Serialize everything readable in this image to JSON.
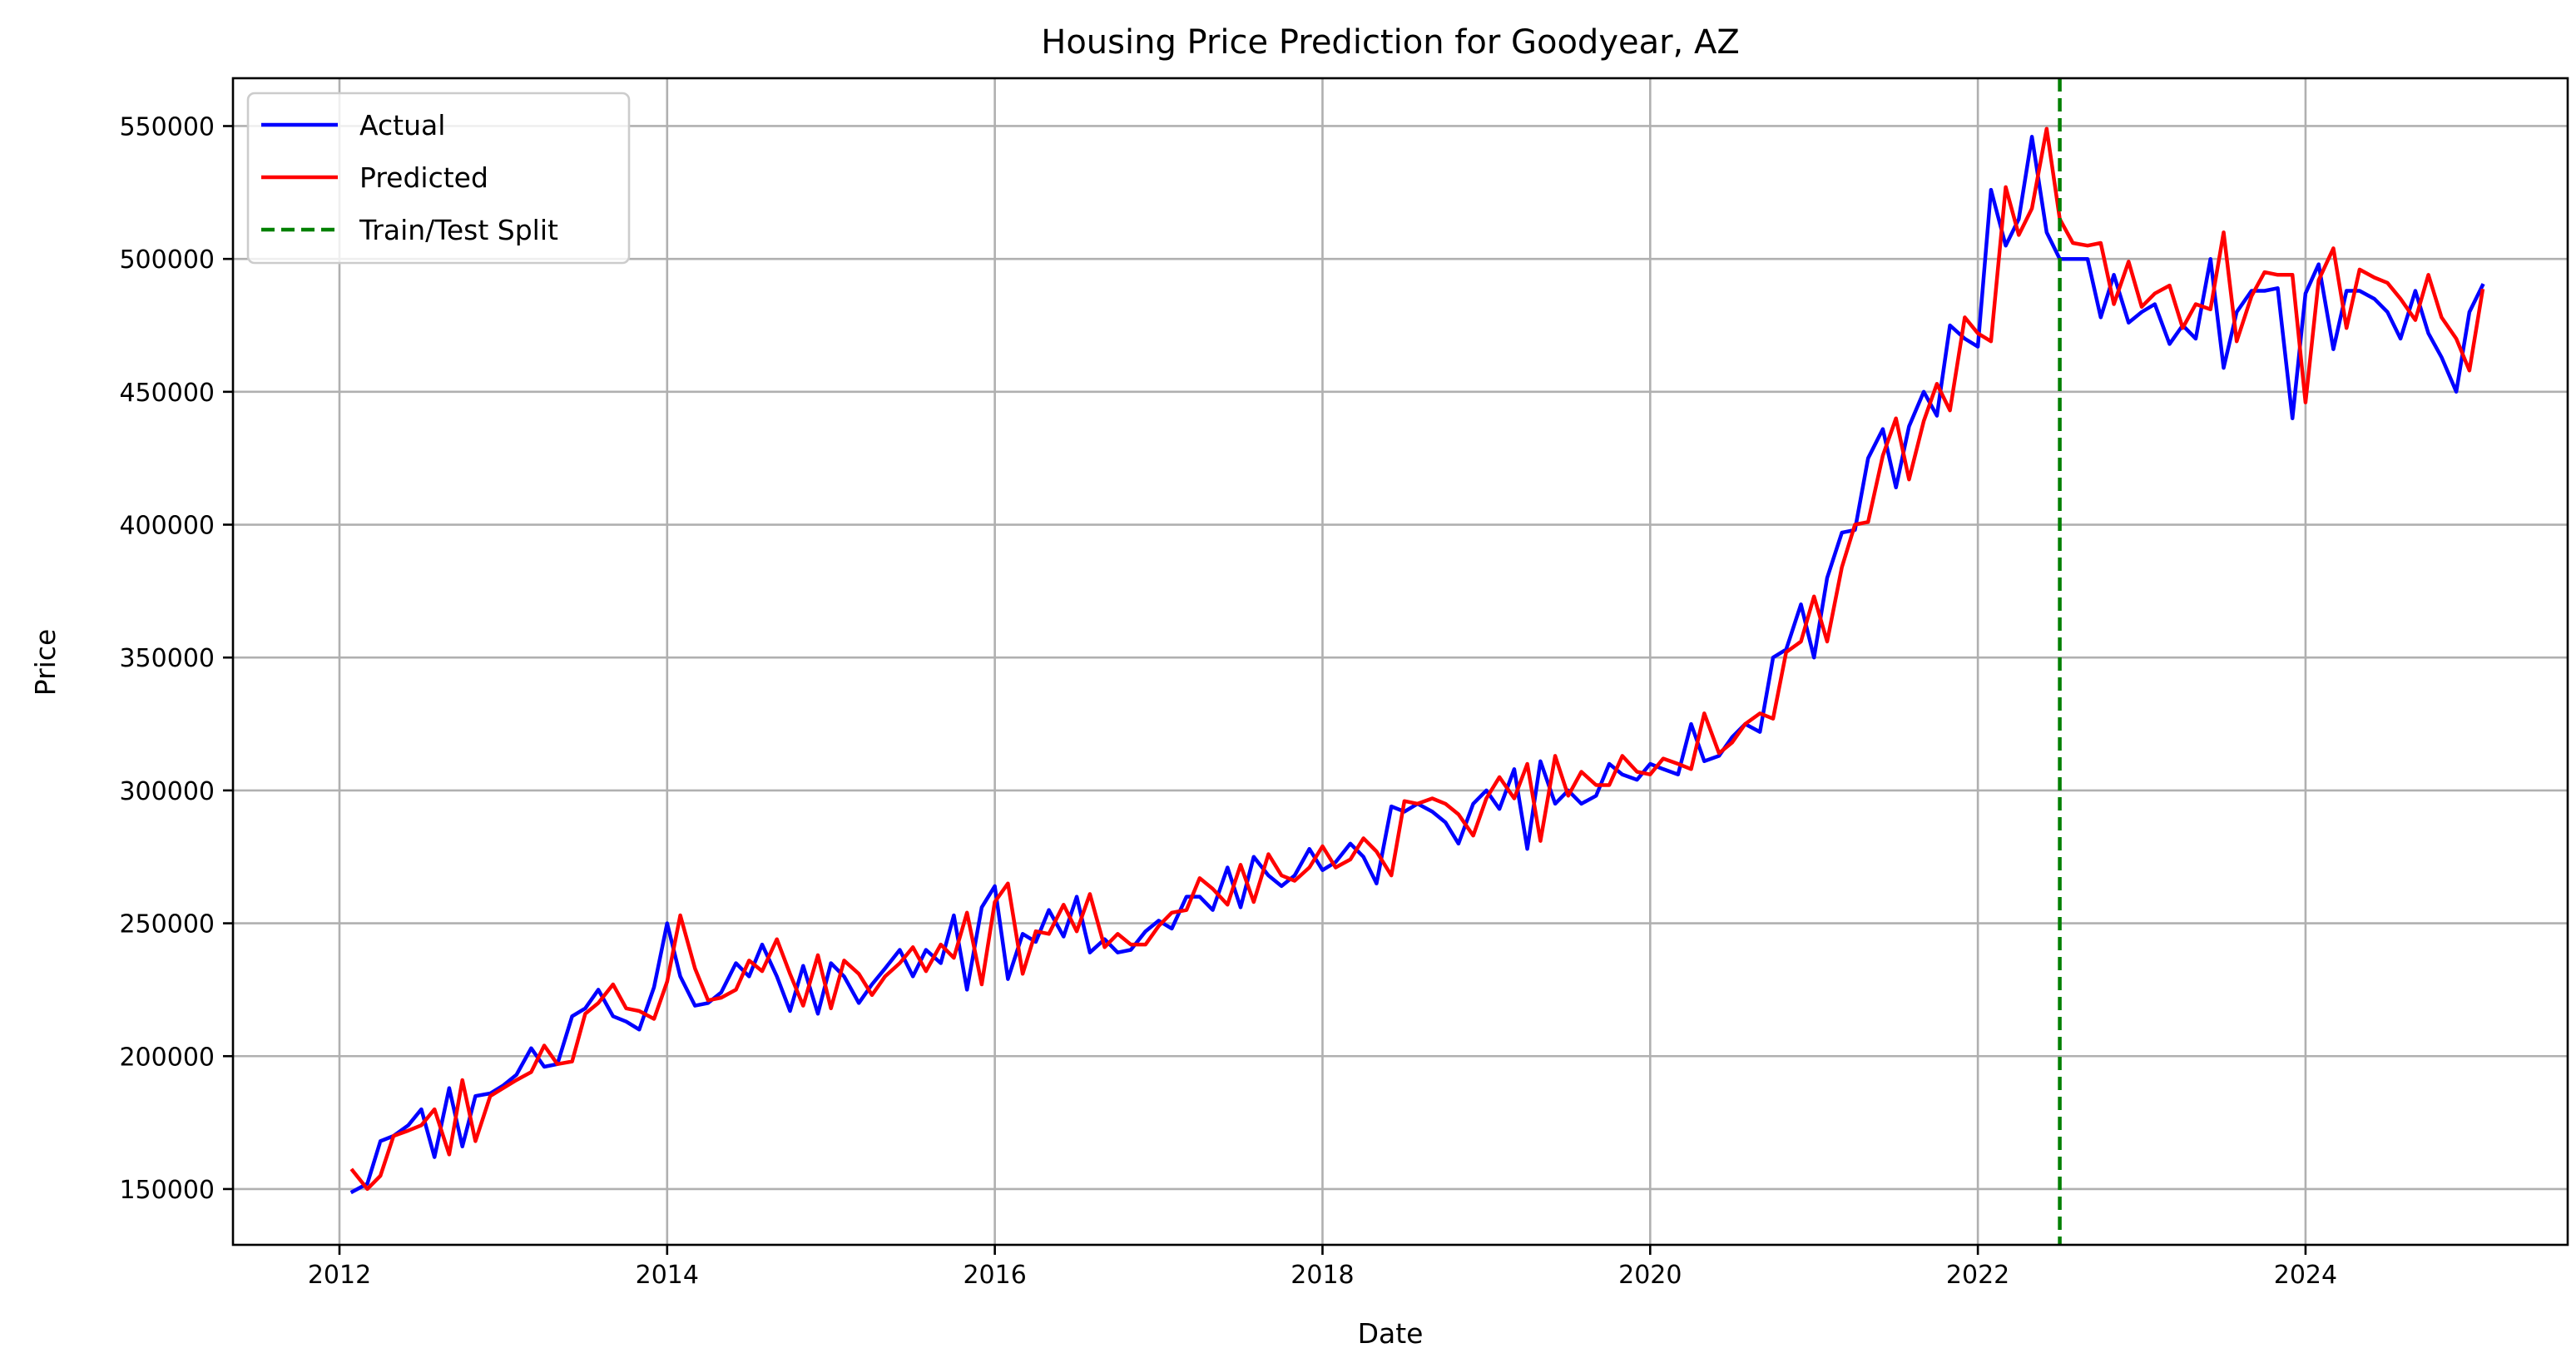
{
  "chart_data": {
    "type": "line",
    "title": "Housing Price Prediction for Goodyear, AZ",
    "xlabel": "Date",
    "ylabel": "Price",
    "xlim": [
      2011.35,
      2025.6
    ],
    "ylim": [
      129000,
      568000
    ],
    "x_ticks": [
      2012,
      2014,
      2016,
      2018,
      2020,
      2022,
      2024
    ],
    "y_ticks": [
      150000,
      200000,
      250000,
      300000,
      350000,
      400000,
      450000,
      500000,
      550000
    ],
    "grid": true,
    "legend": {
      "position": "upper left",
      "entries": [
        "Actual",
        "Predicted",
        "Train/Test Split"
      ]
    },
    "colors": {
      "actual": "#0000ff",
      "predicted": "#ff0000",
      "split": "#008000"
    },
    "split_x": 2022.5,
    "series": [
      {
        "name": "Actual",
        "x": [
          2012.08,
          2012.17,
          2012.25,
          2012.33,
          2012.42,
          2012.5,
          2012.58,
          2012.67,
          2012.75,
          2012.83,
          2012.92,
          2013.0,
          2013.08,
          2013.17,
          2013.25,
          2013.33,
          2013.42,
          2013.5,
          2013.58,
          2013.67,
          2013.75,
          2013.83,
          2013.92,
          2014.0,
          2014.08,
          2014.17,
          2014.25,
          2014.33,
          2014.42,
          2014.5,
          2014.58,
          2014.67,
          2014.75,
          2014.83,
          2014.92,
          2015.0,
          2015.08,
          2015.17,
          2015.25,
          2015.33,
          2015.42,
          2015.5,
          2015.58,
          2015.67,
          2015.75,
          2015.83,
          2015.92,
          2016.0,
          2016.08,
          2016.17,
          2016.25,
          2016.33,
          2016.42,
          2016.5,
          2016.58,
          2016.67,
          2016.75,
          2016.83,
          2016.92,
          2017.0,
          2017.08,
          2017.17,
          2017.25,
          2017.33,
          2017.42,
          2017.5,
          2017.58,
          2017.67,
          2017.75,
          2017.83,
          2017.92,
          2018.0,
          2018.08,
          2018.17,
          2018.25,
          2018.33,
          2018.42,
          2018.5,
          2018.58,
          2018.67,
          2018.75,
          2018.83,
          2018.92,
          2019.0,
          2019.08,
          2019.17,
          2019.25,
          2019.33,
          2019.42,
          2019.5,
          2019.58,
          2019.67,
          2019.75,
          2019.83,
          2019.92,
          2020.0,
          2020.08,
          2020.17,
          2020.25,
          2020.33,
          2020.42,
          2020.5,
          2020.58,
          2020.67,
          2020.75,
          2020.83,
          2020.92,
          2021.0,
          2021.08,
          2021.17,
          2021.25,
          2021.33,
          2021.42,
          2021.5,
          2021.58,
          2021.67,
          2021.75,
          2021.83,
          2021.92,
          2022.0,
          2022.08,
          2022.17,
          2022.25,
          2022.33,
          2022.42,
          2022.5,
          2022.58,
          2022.67,
          2022.75,
          2022.83,
          2022.92,
          2023.0,
          2023.08,
          2023.17,
          2023.25,
          2023.33,
          2023.42,
          2023.5,
          2023.58,
          2023.67,
          2023.75,
          2023.83,
          2023.92,
          2024.0,
          2024.08,
          2024.17,
          2024.25,
          2024.33,
          2024.42,
          2024.5,
          2024.58,
          2024.67,
          2024.75,
          2024.83,
          2024.92,
          2025.0,
          2025.08
        ],
        "values": [
          149000,
          152000,
          168000,
          170000,
          174000,
          180000,
          162000,
          188000,
          166000,
          185000,
          186000,
          189000,
          193000,
          203000,
          196000,
          197000,
          215000,
          218000,
          225000,
          215000,
          213000,
          210000,
          226000,
          250000,
          230000,
          219000,
          220000,
          224000,
          235000,
          230000,
          242000,
          230000,
          217000,
          234000,
          216000,
          235000,
          230000,
          220000,
          227000,
          233000,
          240000,
          230000,
          240000,
          235000,
          253000,
          225000,
          256000,
          264000,
          229000,
          246000,
          243000,
          255000,
          245000,
          260000,
          239000,
          244000,
          239000,
          240000,
          247000,
          251000,
          248000,
          260000,
          260000,
          255000,
          271000,
          256000,
          275000,
          268000,
          264000,
          268000,
          278000,
          270000,
          273000,
          280000,
          275000,
          265000,
          294000,
          292000,
          295000,
          292000,
          288000,
          280000,
          295000,
          300000,
          293000,
          308000,
          278000,
          311000,
          295000,
          300000,
          295000,
          298000,
          310000,
          306000,
          304000,
          310000,
          308000,
          306000,
          325000,
          311000,
          313000,
          320000,
          325000,
          322000,
          350000,
          353000,
          370000,
          350000,
          380000,
          397000,
          398000,
          425000,
          436000,
          414000,
          437000,
          450000,
          441000,
          475000,
          470000,
          467000,
          526000,
          505000,
          515000,
          546000,
          510000,
          500000,
          500000,
          500000,
          478000,
          494000,
          476000,
          480000,
          483000,
          468000,
          475000,
          470000,
          500000,
          459000,
          480000,
          488000,
          488000,
          489000,
          440000,
          487000,
          498000,
          466000,
          488000,
          488000,
          485000,
          480000,
          470000,
          488000,
          472000,
          463000,
          450000,
          480000,
          490000
        ]
      },
      {
        "name": "Predicted",
        "x": [
          2012.08,
          2012.17,
          2012.25,
          2012.33,
          2012.42,
          2012.5,
          2012.58,
          2012.67,
          2012.75,
          2012.83,
          2012.92,
          2013.0,
          2013.08,
          2013.17,
          2013.25,
          2013.33,
          2013.42,
          2013.5,
          2013.58,
          2013.67,
          2013.75,
          2013.83,
          2013.92,
          2014.0,
          2014.08,
          2014.17,
          2014.25,
          2014.33,
          2014.42,
          2014.5,
          2014.58,
          2014.67,
          2014.75,
          2014.83,
          2014.92,
          2015.0,
          2015.08,
          2015.17,
          2015.25,
          2015.33,
          2015.42,
          2015.5,
          2015.58,
          2015.67,
          2015.75,
          2015.83,
          2015.92,
          2016.0,
          2016.08,
          2016.17,
          2016.25,
          2016.33,
          2016.42,
          2016.5,
          2016.58,
          2016.67,
          2016.75,
          2016.83,
          2016.92,
          2017.0,
          2017.08,
          2017.17,
          2017.25,
          2017.33,
          2017.42,
          2017.5,
          2017.58,
          2017.67,
          2017.75,
          2017.83,
          2017.92,
          2018.0,
          2018.08,
          2018.17,
          2018.25,
          2018.33,
          2018.42,
          2018.5,
          2018.58,
          2018.67,
          2018.75,
          2018.83,
          2018.92,
          2019.0,
          2019.08,
          2019.17,
          2019.25,
          2019.33,
          2019.42,
          2019.5,
          2019.58,
          2019.67,
          2019.75,
          2019.83,
          2019.92,
          2020.0,
          2020.08,
          2020.17,
          2020.25,
          2020.33,
          2020.42,
          2020.5,
          2020.58,
          2020.67,
          2020.75,
          2020.83,
          2020.92,
          2021.0,
          2021.08,
          2021.17,
          2021.25,
          2021.33,
          2021.42,
          2021.5,
          2021.58,
          2021.67,
          2021.75,
          2021.83,
          2021.92,
          2022.0,
          2022.08,
          2022.17,
          2022.25,
          2022.33,
          2022.42,
          2022.5,
          2022.58,
          2022.67,
          2022.75,
          2022.83,
          2022.92,
          2023.0,
          2023.08,
          2023.17,
          2023.25,
          2023.33,
          2023.42,
          2023.5,
          2023.58,
          2023.67,
          2023.75,
          2023.83,
          2023.92,
          2024.0,
          2024.08,
          2024.17,
          2024.25,
          2024.33,
          2024.42,
          2024.5,
          2024.58,
          2024.67,
          2024.75,
          2024.83,
          2024.92,
          2025.0,
          2025.08
        ],
        "values": [
          157000,
          150000,
          155000,
          170000,
          172000,
          174000,
          180000,
          163000,
          191000,
          168000,
          185000,
          188000,
          191000,
          194000,
          204000,
          197000,
          198000,
          216000,
          220000,
          227000,
          218000,
          217000,
          214000,
          228000,
          253000,
          233000,
          221000,
          222000,
          225000,
          236000,
          232000,
          244000,
          231000,
          219000,
          238000,
          218000,
          236000,
          231000,
          223000,
          230000,
          235000,
          241000,
          232000,
          242000,
          237000,
          254000,
          227000,
          258000,
          265000,
          231000,
          247000,
          246000,
          257000,
          247000,
          261000,
          241000,
          246000,
          242000,
          242000,
          249000,
          254000,
          255000,
          267000,
          263000,
          257000,
          272000,
          258000,
          276000,
          268000,
          266000,
          271000,
          279000,
          271000,
          274000,
          282000,
          277000,
          268000,
          296000,
          295000,
          297000,
          295000,
          291000,
          283000,
          297000,
          305000,
          297000,
          310000,
          281000,
          313000,
          298000,
          307000,
          302000,
          302000,
          313000,
          307000,
          306000,
          312000,
          310000,
          308000,
          329000,
          314000,
          318000,
          325000,
          329000,
          327000,
          352000,
          356000,
          373000,
          356000,
          384000,
          400000,
          401000,
          426000,
          440000,
          417000,
          439000,
          453000,
          443000,
          478000,
          472000,
          469000,
          527000,
          509000,
          519000,
          549000,
          515000,
          506000,
          505000,
          506000,
          483000,
          499000,
          482000,
          487000,
          490000,
          474000,
          483000,
          481000,
          510000,
          469000,
          486000,
          495000,
          494000,
          494000,
          446000,
          492000,
          504000,
          474000,
          496000,
          493000,
          491000,
          485000,
          477000,
          494000,
          478000,
          470000,
          458000,
          488000
        ]
      }
    ]
  }
}
